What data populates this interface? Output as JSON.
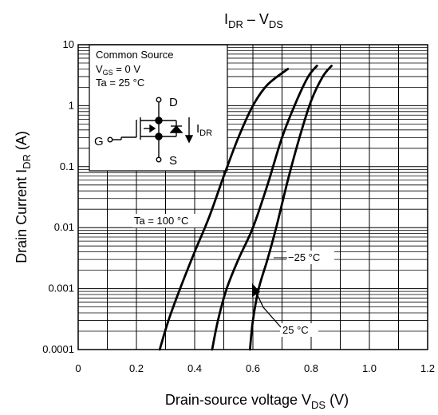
{
  "chart_data": {
    "type": "line",
    "title": {
      "main": "I",
      "main_sub": "DR",
      "sep": " – V",
      "sep_sub": "DS"
    },
    "xlabel": {
      "main": "Drain-source voltage   V",
      "sub": "DS",
      "unit": "   (V)"
    },
    "ylabel": {
      "main": "Drain Current   I",
      "sub": "DR",
      "unit": "   (A)"
    },
    "x_scale": "linear",
    "y_scale": "log",
    "xlim": [
      0,
      1.2
    ],
    "ylim": [
      0.0001,
      10
    ],
    "x_ticks": [
      {
        "value": 0,
        "label": "0"
      },
      {
        "value": 0.2,
        "label": "0.2"
      },
      {
        "value": 0.4,
        "label": "0.4"
      },
      {
        "value": 0.6,
        "label": "0.6"
      },
      {
        "value": 0.8,
        "label": "0.8"
      },
      {
        "value": 1.0,
        "label": "1.0"
      },
      {
        "value": 1.2,
        "label": "1.2"
      }
    ],
    "y_ticks": [
      {
        "value": 0.0001,
        "label": "0.0001"
      },
      {
        "value": 0.001,
        "label": "0.001"
      },
      {
        "value": 0.01,
        "label": "0.01"
      },
      {
        "value": 0.1,
        "label": "0.1"
      },
      {
        "value": 1,
        "label": "1"
      },
      {
        "value": 10,
        "label": "10"
      }
    ],
    "grid": true,
    "series": [
      {
        "name": "Ta = 100 °C",
        "points": [
          [
            0.28,
            0.0001
          ],
          [
            0.31,
            0.0003
          ],
          [
            0.35,
            0.001
          ],
          [
            0.4,
            0.004
          ],
          [
            0.45,
            0.015
          ],
          [
            0.5,
            0.07
          ],
          [
            0.55,
            0.3
          ],
          [
            0.6,
            1.0
          ],
          [
            0.65,
            2.2
          ],
          [
            0.72,
            4.0
          ]
        ]
      },
      {
        "name": "25 °C",
        "points": [
          [
            0.46,
            0.0001
          ],
          [
            0.48,
            0.0003
          ],
          [
            0.51,
            0.001
          ],
          [
            0.55,
            0.003
          ],
          [
            0.6,
            0.01
          ],
          [
            0.65,
            0.05
          ],
          [
            0.7,
            0.3
          ],
          [
            0.75,
            1.2
          ],
          [
            0.79,
            3.0
          ],
          [
            0.82,
            4.5
          ]
        ]
      },
      {
        "name": "−25 °C",
        "points": [
          [
            0.59,
            0.0001
          ],
          [
            0.6,
            0.0003
          ],
          [
            0.62,
            0.001
          ],
          [
            0.65,
            0.003
          ],
          [
            0.68,
            0.01
          ],
          [
            0.72,
            0.06
          ],
          [
            0.76,
            0.3
          ],
          [
            0.8,
            1.2
          ],
          [
            0.84,
            3.0
          ],
          [
            0.87,
            4.5
          ]
        ]
      }
    ],
    "annotations": {
      "condition_lines": [
        {
          "text": "Common Source"
        },
        {
          "main": "V",
          "sub": "GS",
          "rest": " = 0 V"
        },
        {
          "text": "Ta = 25 °C"
        }
      ],
      "circuit": {
        "drain": "D",
        "gate": "G",
        "source": "S",
        "current_main": "I",
        "current_sub": "DR"
      },
      "labels": [
        {
          "text": "Ta = 100 °C"
        },
        {
          "text": "−25 °C"
        },
        {
          "text": "25 °C"
        }
      ]
    }
  }
}
